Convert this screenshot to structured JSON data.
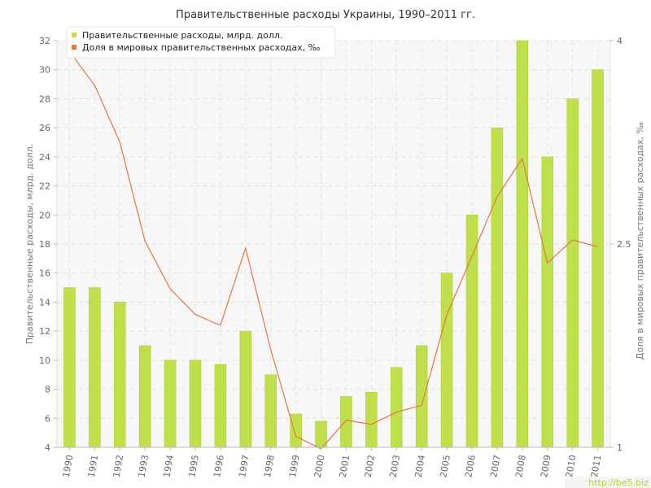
{
  "chart_data": {
    "type": "bar",
    "title": "Правительственные расходы Украины, 1990–2011 гг.",
    "categories": [
      "1990",
      "1991",
      "1992",
      "1993",
      "1994",
      "1995",
      "1996",
      "1997",
      "1998",
      "1999",
      "2000",
      "2001",
      "2002",
      "2003",
      "2004",
      "2005",
      "2006",
      "2007",
      "2008",
      "2009",
      "2010",
      "2011"
    ],
    "series": [
      {
        "name": "Правительственные расходы, млрд. долл.",
        "type": "bar",
        "axis": "left",
        "color": "#bfe04a",
        "values": [
          15,
          15,
          14,
          11,
          10,
          10,
          9.7,
          12,
          9,
          6.3,
          5.8,
          7.5,
          7.8,
          9.5,
          11,
          16,
          20,
          26,
          32,
          24,
          28,
          30
        ]
      },
      {
        "name": "Доля в мировых правительственных расходах, ‰",
        "type": "line",
        "axis": "right",
        "color": "#e07840",
        "values": [
          3.92,
          3.67,
          3.25,
          2.52,
          2.17,
          1.98,
          1.9,
          2.47,
          1.72,
          1.08,
          0.99,
          1.2,
          1.17,
          1.26,
          1.31,
          1.98,
          2.41,
          2.85,
          3.13,
          2.36,
          2.53,
          2.48
        ]
      }
    ],
    "ylabel": "Правительственные расходы, млрд. долл.",
    "y2label": "Доля в мировых правительственных расходах, ‰",
    "ylim": [
      4,
      32
    ],
    "yticks": [
      "4",
      "6",
      "8",
      "10",
      "12",
      "14",
      "16",
      "18",
      "20",
      "22",
      "24",
      "26",
      "28",
      "30",
      "32"
    ],
    "y2lim": [
      1,
      4
    ],
    "y2ticks": [
      "1",
      "2.5",
      "4"
    ],
    "grid": true,
    "legend": "top-left"
  },
  "watermark": "http://be5.biz",
  "colors": {
    "bar": "#bfe04a",
    "bar_edge": "#a6c935",
    "line": "#e07840",
    "grid": "#e2e2e2",
    "plot_bg": "#f7f7f7"
  }
}
